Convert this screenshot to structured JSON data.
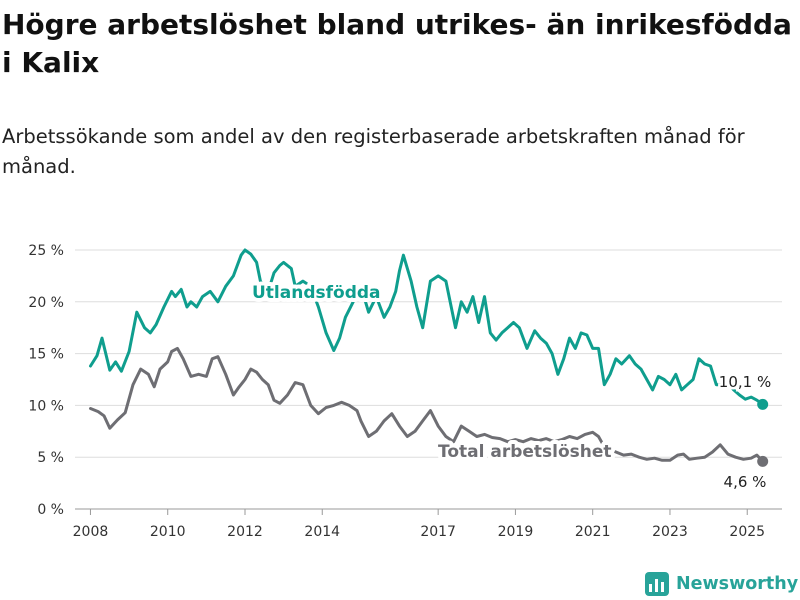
{
  "title": "Högre arbetslöshet bland utrikes- än inrikesfödda i Kalix",
  "subtitle": "Arbetssökande som andel av den registerbaserade arbetskraften månad för månad.",
  "brand": "Newsworthy",
  "colors": {
    "utlandsfodda": "#0f9e8e",
    "total": "#6e6e73",
    "grid": "#dddddd",
    "brand": "#28a399"
  },
  "chart_data": {
    "type": "line",
    "xlim": [
      2007.6,
      2025.9
    ],
    "ylim": [
      0,
      25
    ],
    "yticks": [
      0,
      5,
      10,
      15,
      20,
      25
    ],
    "ytick_labels": [
      "0 %",
      "5 %",
      "10 %",
      "15 %",
      "20 %",
      "25 %"
    ],
    "xticks": [
      2008,
      2010,
      2012,
      2014,
      2017,
      2019,
      2021,
      2023,
      2025
    ],
    "xtick_labels": [
      "2008",
      "2010",
      "2012",
      "2014",
      "2017",
      "2019",
      "2021",
      "2023",
      "2025"
    ],
    "grid": true,
    "series": [
      {
        "name": "Utlandsfödda",
        "label": "Utlandsfödda",
        "end_label": "10,1 %",
        "x": [
          2008.0,
          2008.17,
          2008.3,
          2008.5,
          2008.65,
          2008.8,
          2009.0,
          2009.2,
          2009.4,
          2009.55,
          2009.7,
          2009.9,
          2010.1,
          2010.2,
          2010.35,
          2010.5,
          2010.6,
          2010.75,
          2010.9,
          2011.1,
          2011.3,
          2011.5,
          2011.7,
          2011.9,
          2012.0,
          2012.15,
          2012.3,
          2012.4,
          2012.6,
          2012.75,
          2012.9,
          2013.0,
          2013.2,
          2013.3,
          2013.5,
          2013.7,
          2013.9,
          2014.1,
          2014.3,
          2014.45,
          2014.6,
          2014.8,
          2015.0,
          2015.2,
          2015.4,
          2015.6,
          2015.75,
          2015.9,
          2016.0,
          2016.1,
          2016.3,
          2016.45,
          2016.6,
          2016.8,
          2017.0,
          2017.2,
          2017.45,
          2017.6,
          2017.75,
          2017.9,
          2018.05,
          2018.2,
          2018.35,
          2018.5,
          2018.65,
          2018.8,
          2018.95,
          2019.1,
          2019.3,
          2019.5,
          2019.65,
          2019.8,
          2019.95,
          2020.1,
          2020.25,
          2020.4,
          2020.55,
          2020.7,
          2020.85,
          2021.0,
          2021.15,
          2021.3,
          2021.45,
          2021.6,
          2021.75,
          2021.95,
          2022.1,
          2022.25,
          2022.4,
          2022.55,
          2022.7,
          2022.85,
          2023.0,
          2023.15,
          2023.3,
          2023.45,
          2023.6,
          2023.75,
          2023.9,
          2024.05,
          2024.2,
          2024.35,
          2024.5,
          2024.65,
          2024.8,
          2024.95,
          2025.1,
          2025.25,
          2025.4
        ],
        "y": [
          13.8,
          14.8,
          16.5,
          13.4,
          14.2,
          13.3,
          15.2,
          19.0,
          17.5,
          17.0,
          17.8,
          19.5,
          21.0,
          20.5,
          21.2,
          19.5,
          20.0,
          19.5,
          20.5,
          21.0,
          20.0,
          21.5,
          22.5,
          24.5,
          25.0,
          24.6,
          23.8,
          22.0,
          21.0,
          22.8,
          23.5,
          23.8,
          23.2,
          21.5,
          22.0,
          21.5,
          19.5,
          17.0,
          15.3,
          16.5,
          18.5,
          20.0,
          21.5,
          19.0,
          20.5,
          18.5,
          19.5,
          21.0,
          23.0,
          24.5,
          22.0,
          19.5,
          17.5,
          22.0,
          22.5,
          22.0,
          17.5,
          20.0,
          19.0,
          20.5,
          18.0,
          20.5,
          17.0,
          16.3,
          17.0,
          17.5,
          18.0,
          17.5,
          15.5,
          17.2,
          16.5,
          16.0,
          15.0,
          13.0,
          14.5,
          16.5,
          15.5,
          17.0,
          16.8,
          15.5,
          15.5,
          12.0,
          13.0,
          14.5,
          14.0,
          14.8,
          14.0,
          13.5,
          12.5,
          11.5,
          12.8,
          12.5,
          12.0,
          13.0,
          11.5,
          12.0,
          12.5,
          14.5,
          14.0,
          13.8,
          12.0,
          12.0,
          12.2,
          11.5,
          11.0,
          10.6,
          10.8,
          10.5,
          10.1
        ]
      },
      {
        "name": "Total arbetslöshet",
        "label": "Total arbetslöshet",
        "end_label": "4,6 %",
        "x": [
          2008.0,
          2008.2,
          2008.35,
          2008.5,
          2008.7,
          2008.9,
          2009.1,
          2009.3,
          2009.5,
          2009.65,
          2009.8,
          2010.0,
          2010.1,
          2010.25,
          2010.4,
          2010.6,
          2010.8,
          2011.0,
          2011.15,
          2011.3,
          2011.5,
          2011.7,
          2011.85,
          2012.0,
          2012.15,
          2012.3,
          2012.45,
          2012.6,
          2012.75,
          2012.9,
          2013.1,
          2013.3,
          2013.5,
          2013.7,
          2013.9,
          2014.1,
          2014.3,
          2014.5,
          2014.7,
          2014.9,
          2015.0,
          2015.2,
          2015.4,
          2015.6,
          2015.8,
          2016.0,
          2016.2,
          2016.4,
          2016.6,
          2016.8,
          2017.0,
          2017.2,
          2017.4,
          2017.6,
          2017.8,
          2018.0,
          2018.2,
          2018.4,
          2018.6,
          2018.8,
          2019.0,
          2019.2,
          2019.4,
          2019.6,
          2019.8,
          2020.0,
          2020.2,
          2020.4,
          2020.6,
          2020.8,
          2021.0,
          2021.15,
          2021.3,
          2021.45,
          2021.6,
          2021.8,
          2022.0,
          2022.2,
          2022.4,
          2022.6,
          2022.8,
          2023.0,
          2023.2,
          2023.35,
          2023.5,
          2023.7,
          2023.9,
          2024.1,
          2024.3,
          2024.5,
          2024.7,
          2024.9,
          2025.1,
          2025.25,
          2025.4
        ],
        "y": [
          9.7,
          9.4,
          9.0,
          7.8,
          8.6,
          9.3,
          12.0,
          13.5,
          13.0,
          11.8,
          13.5,
          14.2,
          15.2,
          15.5,
          14.5,
          12.8,
          13.0,
          12.8,
          14.5,
          14.7,
          13.0,
          11.0,
          11.8,
          12.5,
          13.5,
          13.2,
          12.5,
          12.0,
          10.5,
          10.2,
          11.0,
          12.2,
          12.0,
          10.0,
          9.2,
          9.8,
          10.0,
          10.3,
          10.0,
          9.5,
          8.5,
          7.0,
          7.5,
          8.5,
          9.2,
          8.0,
          7.0,
          7.5,
          8.5,
          9.5,
          8.0,
          7.0,
          6.5,
          8.0,
          7.5,
          7.0,
          7.2,
          6.9,
          6.8,
          6.5,
          6.7,
          6.5,
          6.8,
          6.6,
          6.8,
          6.5,
          6.7,
          7.0,
          6.8,
          7.2,
          7.4,
          7.0,
          6.0,
          5.7,
          5.5,
          5.2,
          5.3,
          5.0,
          4.8,
          4.9,
          4.7,
          4.7,
          5.2,
          5.3,
          4.8,
          4.9,
          5.0,
          5.5,
          6.2,
          5.3,
          5.0,
          4.8,
          4.9,
          5.2,
          4.6
        ]
      }
    ]
  }
}
